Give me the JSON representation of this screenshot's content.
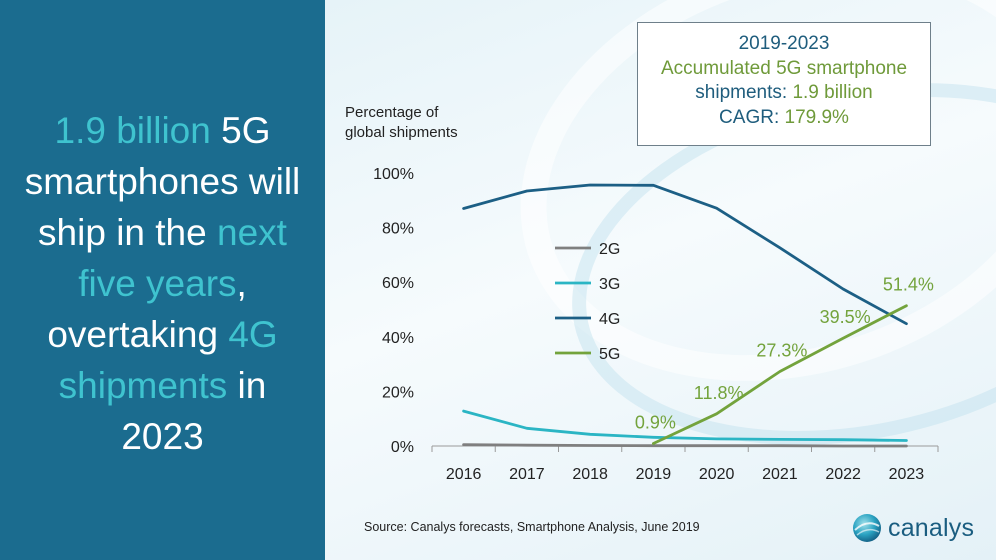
{
  "headline": {
    "parts": [
      {
        "text": "1.9 billion",
        "highlight": true
      },
      {
        "text": " 5G smartphones will ship in the ",
        "highlight": false
      },
      {
        "text": "next five years",
        "highlight": true
      },
      {
        "text": ", overtaking ",
        "highlight": false
      },
      {
        "text": "4G shipments",
        "highlight": true
      },
      {
        "text": " in 2023",
        "highlight": false
      }
    ]
  },
  "callout": {
    "line1": "2019-2023",
    "line2": "Accumulated 5G smartphone",
    "line3_label": "shipments: ",
    "line3_value": "1.9 billion",
    "line4_label": "CAGR: ",
    "line4_value": "179.9%"
  },
  "chart_data": {
    "type": "line",
    "ylabel": "Percentage of global shipments",
    "ylabel_lines": [
      "Percentage of",
      "global shipments"
    ],
    "x": [
      "2016",
      "2017",
      "2018",
      "2019",
      "2020",
      "2021",
      "2022",
      "2023"
    ],
    "ylim": [
      0,
      100
    ],
    "yticks": [
      "0%",
      "20%",
      "40%",
      "60%",
      "80%",
      "100%"
    ],
    "grid": false,
    "legend_position": "center-left",
    "series": [
      {
        "name": "2G",
        "color": "#7f7f7f",
        "values": [
          0.5,
          0.3,
          0.2,
          0.1,
          0.1,
          0.1,
          0.0,
          0.0
        ]
      },
      {
        "name": "3G",
        "color": "#2bb5c4",
        "values": [
          12.8,
          6.5,
          4.3,
          3.2,
          2.6,
          2.4,
          2.3,
          2.0
        ]
      },
      {
        "name": "4G",
        "color": "#1c5f85",
        "values": [
          87.0,
          93.4,
          95.6,
          95.5,
          87.1,
          72.6,
          57.5,
          44.8
        ]
      },
      {
        "name": "5G",
        "color": "#73a33c",
        "values": [
          null,
          null,
          null,
          0.9,
          11.8,
          27.3,
          39.5,
          51.4
        ]
      }
    ],
    "data_labels": [
      {
        "series": "5G",
        "x": "2019",
        "text": "0.9%"
      },
      {
        "series": "5G",
        "x": "2020",
        "text": "11.8%"
      },
      {
        "series": "5G",
        "x": "2021",
        "text": "27.3%"
      },
      {
        "series": "5G",
        "x": "2022",
        "text": "39.5%"
      },
      {
        "series": "5G",
        "x": "2023",
        "text": "51.4%"
      }
    ]
  },
  "source": "Source: Canalys forecasts, Smartphone Analysis, June 2019",
  "logo": {
    "text": "canalys",
    "icon": "canalys-globe-icon"
  },
  "colors": {
    "panel": "#1b6c8f",
    "highlight": "#3fc3cf",
    "callout_green": "#6f9a3a",
    "callout_blue": "#1f5d7d"
  }
}
